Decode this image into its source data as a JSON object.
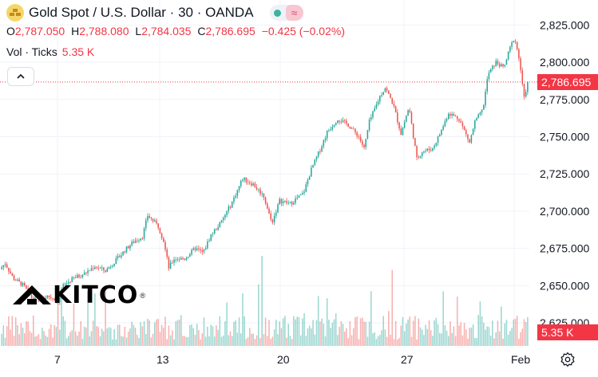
{
  "header": {
    "symbol_title": "Gold Spot / U.S. Dollar · 30 · OANDA",
    "ohlc": {
      "o_label": "O",
      "o_value": "2,787.050",
      "h_label": "H",
      "h_value": "2,788.080",
      "l_label": "L",
      "l_value": "2,784.035",
      "c_label": "C",
      "c_value": "2,786.695",
      "change": "−0.425 (−0.02%)"
    },
    "volume_label": "Vol · Ticks",
    "volume_value": "5.35 K"
  },
  "watermark": {
    "text": "KITCO"
  },
  "colors": {
    "up": "#26a69a",
    "down": "#ef5350",
    "tag": "#f23645",
    "grid": "#f0f3fa"
  },
  "chart_data": {
    "type": "candlestick",
    "interval": "30",
    "x_ticks": [
      "7",
      "13",
      "20",
      "27",
      "Feb"
    ],
    "y_ticks": [
      "2,825.000",
      "2,800.000",
      "2,775.000",
      "2,750.000",
      "2,725.000",
      "2,700.000",
      "2,675.000",
      "2,650.000",
      "2,625.000"
    ],
    "ylim": [
      2617,
      2830
    ],
    "last_price": 2786.695,
    "last_price_label": "2,786.695",
    "volume_last_label": "5.35 K",
    "price_path": [
      [
        0,
        2661
      ],
      [
        0.01,
        2665
      ],
      [
        0.025,
        2655
      ],
      [
        0.045,
        2650
      ],
      [
        0.06,
        2642
      ],
      [
        0.075,
        2640
      ],
      [
        0.09,
        2643
      ],
      [
        0.11,
        2640
      ],
      [
        0.12,
        2650
      ],
      [
        0.14,
        2655
      ],
      [
        0.16,
        2658
      ],
      [
        0.18,
        2663
      ],
      [
        0.2,
        2660
      ],
      [
        0.22,
        2667
      ],
      [
        0.24,
        2675
      ],
      [
        0.255,
        2680
      ],
      [
        0.27,
        2683
      ],
      [
        0.28,
        2697
      ],
      [
        0.3,
        2690
      ],
      [
        0.31,
        2680
      ],
      [
        0.32,
        2662
      ],
      [
        0.33,
        2668
      ],
      [
        0.35,
        2668
      ],
      [
        0.37,
        2675
      ],
      [
        0.385,
        2672
      ],
      [
        0.4,
        2684
      ],
      [
        0.42,
        2693
      ],
      [
        0.44,
        2706
      ],
      [
        0.46,
        2722
      ],
      [
        0.48,
        2718
      ],
      [
        0.5,
        2710
      ],
      [
        0.515,
        2692
      ],
      [
        0.53,
        2707
      ],
      [
        0.55,
        2705
      ],
      [
        0.575,
        2712
      ],
      [
        0.59,
        2728
      ],
      [
        0.605,
        2740
      ],
      [
        0.62,
        2753
      ],
      [
        0.64,
        2762
      ],
      [
        0.66,
        2758
      ],
      [
        0.68,
        2750
      ],
      [
        0.69,
        2742
      ],
      [
        0.7,
        2760
      ],
      [
        0.72,
        2777
      ],
      [
        0.73,
        2783
      ],
      [
        0.745,
        2772
      ],
      [
        0.76,
        2752
      ],
      [
        0.775,
        2770
      ],
      [
        0.79,
        2735
      ],
      [
        0.8,
        2740
      ],
      [
        0.82,
        2742
      ],
      [
        0.835,
        2753
      ],
      [
        0.85,
        2766
      ],
      [
        0.87,
        2762
      ],
      [
        0.89,
        2746
      ],
      [
        0.9,
        2760
      ],
      [
        0.915,
        2768
      ],
      [
        0.925,
        2792
      ],
      [
        0.94,
        2800
      ],
      [
        0.955,
        2796
      ],
      [
        0.965,
        2808
      ],
      [
        0.975,
        2817
      ],
      [
        0.985,
        2800
      ],
      [
        0.993,
        2775
      ],
      [
        1.0,
        2786.7
      ]
    ]
  }
}
